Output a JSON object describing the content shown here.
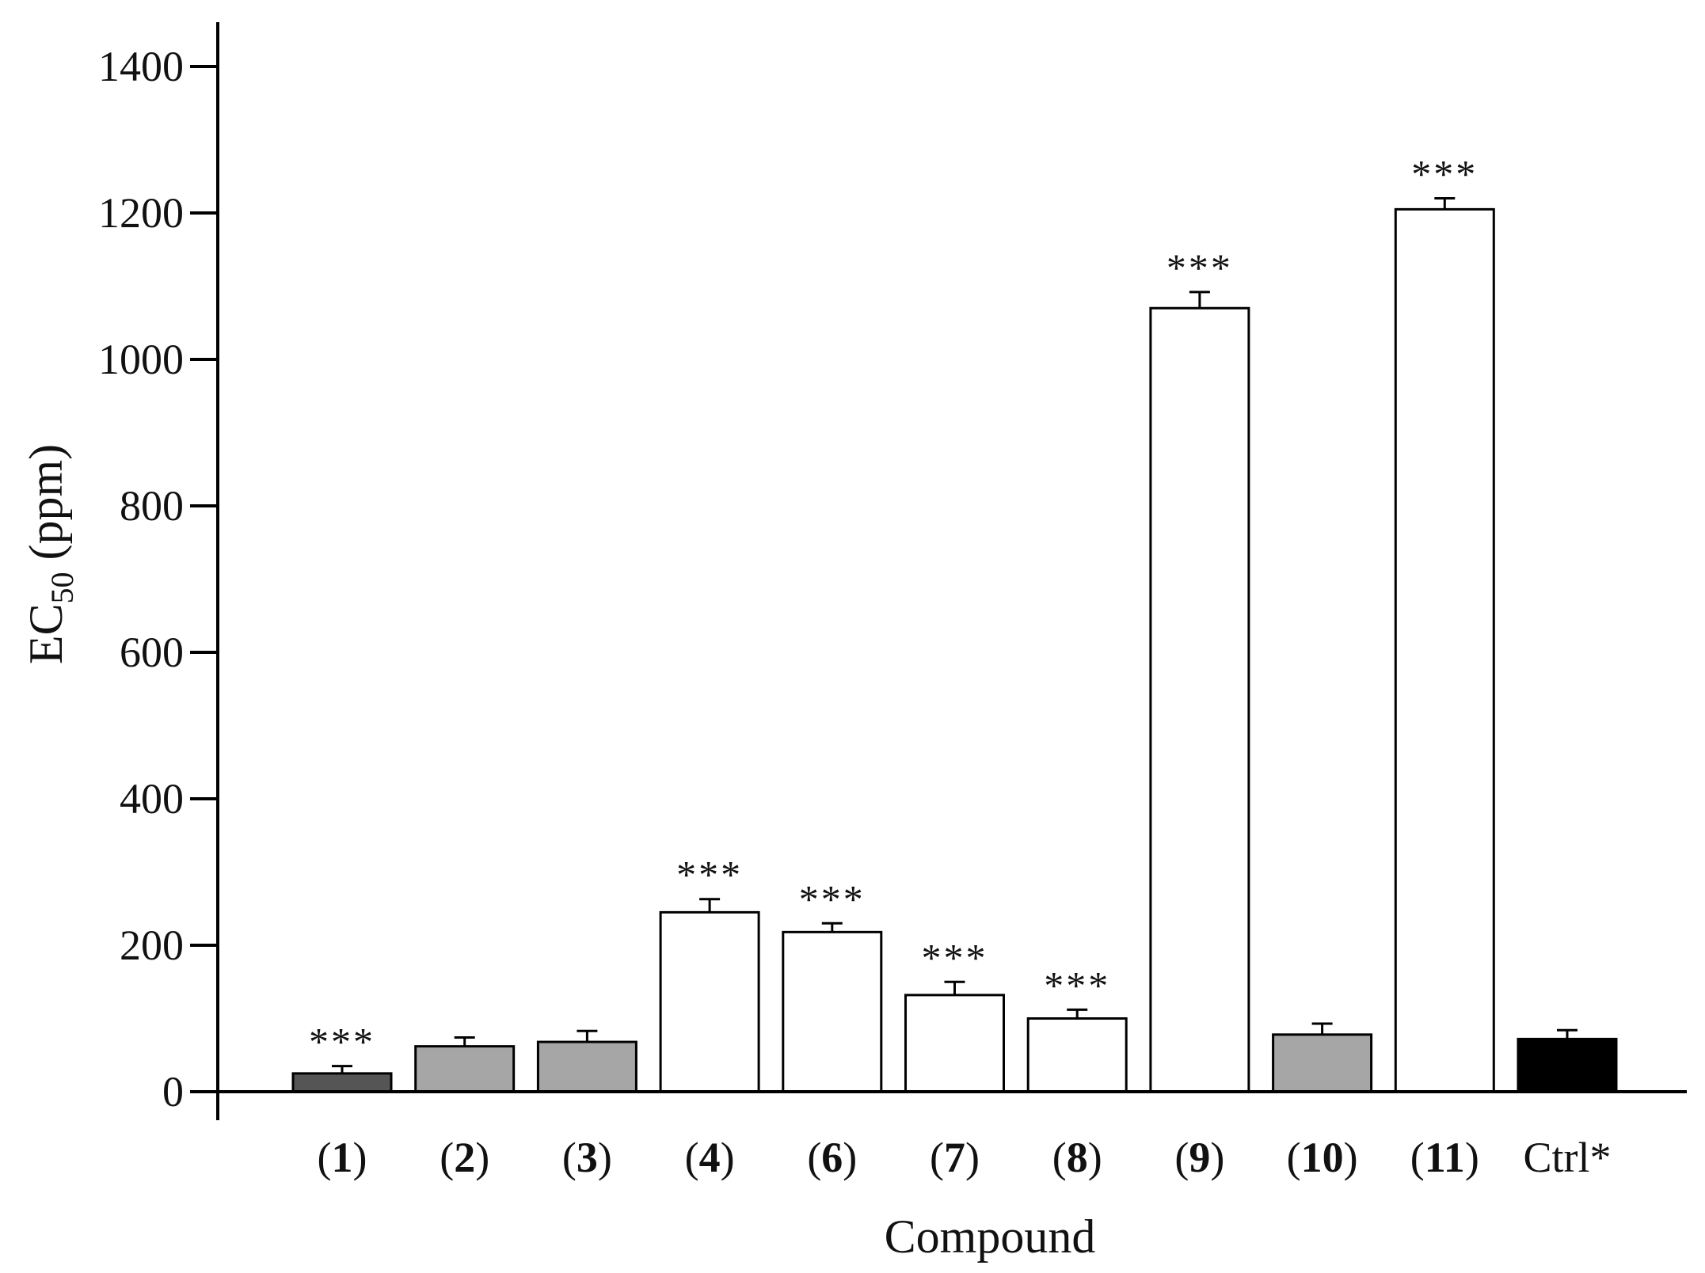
{
  "chart_data": {
    "type": "bar",
    "title": "",
    "xlabel": "Compound",
    "ylabel": {
      "main": "EC",
      "sub": "50",
      "unit": "(ppm)"
    },
    "ylim": [
      0,
      1400
    ],
    "yticks": [
      0,
      200,
      400,
      600,
      800,
      1000,
      1200,
      1400
    ],
    "grid": false,
    "legend": "none",
    "categories": [
      {
        "label": "1",
        "bold": true
      },
      {
        "label": "2",
        "bold": true
      },
      {
        "label": "3",
        "bold": true
      },
      {
        "label": "4",
        "bold": true
      },
      {
        "label": "6",
        "bold": true
      },
      {
        "label": "7",
        "bold": true
      },
      {
        "label": "8",
        "bold": true
      },
      {
        "label": "9",
        "bold": true
      },
      {
        "label": "10",
        "bold": true
      },
      {
        "label": "11",
        "bold": true
      },
      {
        "label": "Ctrl*",
        "bold": false
      }
    ],
    "values": [
      25,
      62,
      68,
      245,
      218,
      132,
      100,
      1070,
      78,
      1205,
      72
    ],
    "errors": [
      10,
      12,
      15,
      18,
      12,
      18,
      12,
      22,
      15,
      15,
      12
    ],
    "significance": [
      "***",
      "",
      "",
      "***",
      "***",
      "***",
      "***",
      "***",
      "",
      "***",
      ""
    ],
    "fills": [
      "#555555",
      "#a6a6a6",
      "#a6a6a6",
      "#ffffff",
      "#ffffff",
      "#ffffff",
      "#ffffff",
      "#ffffff",
      "#a6a6a6",
      "#ffffff",
      "#000000"
    ],
    "stroke_color": "#000000"
  }
}
